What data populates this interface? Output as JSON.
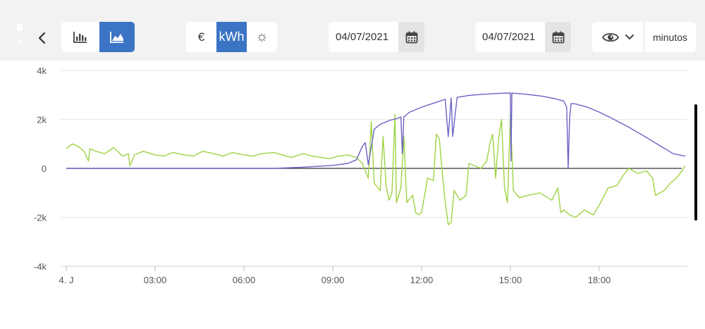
{
  "toolbar": {
    "back_icon": "chevron-left-icon",
    "view_modes": [
      {
        "icon": "bar-chart-icon",
        "active": false
      },
      {
        "icon": "area-chart-icon",
        "active": true
      }
    ],
    "units": [
      {
        "label": "€",
        "active": false
      },
      {
        "label": "kWh",
        "active": true
      },
      {
        "label": "☼",
        "active": false
      }
    ],
    "date_from": "04/07/2021",
    "date_to": "04/07/2021",
    "resolution": "minutos"
  },
  "chart_data": {
    "type": "line",
    "ylim": [
      -4000,
      4000
    ],
    "y_ticks": [
      "4k",
      "2k",
      "0",
      "-2k",
      "-4k"
    ],
    "x_ticks": [
      "4. J",
      "03:00",
      "06:00",
      "09:00",
      "12:00",
      "15:00",
      "18:00"
    ],
    "colors": {
      "production": "#6b63c4",
      "balance": "#9fd344",
      "zero_line": "#333333"
    },
    "series": [
      {
        "key": "production",
        "x": [
          0,
          6,
          7,
          8,
          9,
          9.5,
          9.8,
          10.0,
          10.1,
          10.2,
          10.4,
          10.6,
          10.9,
          11.2,
          11.3,
          11.35,
          11.4,
          11.6,
          12,
          12.5,
          12.8,
          12.85,
          12.9,
          13,
          13.05,
          13.2,
          13.6,
          14,
          14.5,
          15,
          15.02,
          15.05,
          15.1,
          15.5,
          16,
          16.5,
          16.8,
          16.9,
          16.95,
          17.0,
          17.05,
          17.2,
          17.6,
          18,
          18.5,
          19,
          19.5,
          20,
          20.5,
          20.9
        ],
        "y": [
          0,
          0,
          0,
          50,
          120,
          200,
          350,
          900,
          1050,
          150,
          1600,
          1800,
          1950,
          2050,
          2100,
          600,
          2100,
          2300,
          2500,
          2700,
          2820,
          2000,
          1300,
          2880,
          1300,
          2900,
          2980,
          3020,
          3060,
          3080,
          300,
          3080,
          3070,
          3030,
          2960,
          2850,
          2750,
          2500,
          0,
          2100,
          2650,
          2630,
          2500,
          2300,
          2000,
          1680,
          1330,
          960,
          600,
          500
        ]
      },
      {
        "key": "balance",
        "x": [
          0,
          0.2,
          0.4,
          0.6,
          0.75,
          0.8,
          1,
          1.3,
          1.6,
          1.9,
          2.1,
          2.15,
          2.3,
          2.6,
          3,
          3.3,
          3.6,
          4,
          4.3,
          4.6,
          5,
          5.3,
          5.6,
          6,
          6.3,
          6.6,
          7,
          7.3,
          7.6,
          8,
          8.3,
          8.6,
          8.9,
          9.2,
          9.5,
          9.8,
          10.0,
          10.1,
          10.2,
          10.3,
          10.4,
          10.6,
          10.7,
          10.8,
          10.9,
          11.0,
          11.1,
          11.15,
          11.2,
          11.3,
          11.4,
          11.5,
          11.7,
          11.8,
          11.9,
          12.0,
          12.2,
          12.4,
          12.5,
          12.6,
          12.7,
          12.8,
          12.9,
          13.0,
          13.1,
          13.3,
          13.5,
          13.6,
          13.8,
          14,
          14.2,
          14.3,
          14.4,
          14.5,
          14.6,
          14.7,
          14.8,
          14.9,
          15.0,
          15.1,
          15.3,
          15.6,
          16,
          16.4,
          16.6,
          16.7,
          16.8,
          16.9,
          17.0,
          17.2,
          17.5,
          17.8,
          18,
          18.3,
          18.6,
          18.8,
          19,
          19.3,
          19.6,
          19.8,
          19.9,
          20.2,
          20.4,
          20.6,
          20.8,
          20.9
        ],
        "y": [
          800,
          1000,
          900,
          700,
          300,
          800,
          700,
          600,
          850,
          500,
          600,
          100,
          550,
          700,
          550,
          500,
          650,
          550,
          500,
          700,
          600,
          500,
          650,
          550,
          500,
          600,
          650,
          550,
          450,
          600,
          500,
          450,
          400,
          500,
          550,
          450,
          200,
          -100,
          -400,
          1900,
          -600,
          -900,
          1300,
          -700,
          -1300,
          -1000,
          2200,
          -1400,
          -1200,
          -800,
          1300,
          -1400,
          -1100,
          -1800,
          -1900,
          -1800,
          -400,
          -500,
          1400,
          1200,
          -200,
          -1400,
          -2300,
          -2200,
          -900,
          -1300,
          -1100,
          200,
          100,
          0,
          300,
          1000,
          1400,
          -400,
          1200,
          2000,
          -800,
          -1400,
          2200,
          -900,
          -1200,
          -1100,
          -1000,
          -1300,
          -800,
          -1800,
          -1700,
          -1800,
          -1900,
          -2000,
          -1700,
          -1900,
          -1500,
          -800,
          -700,
          -300,
          0,
          -200,
          -100,
          -400,
          -1100,
          -900,
          -600,
          -400,
          -100,
          100
        ]
      }
    ]
  }
}
